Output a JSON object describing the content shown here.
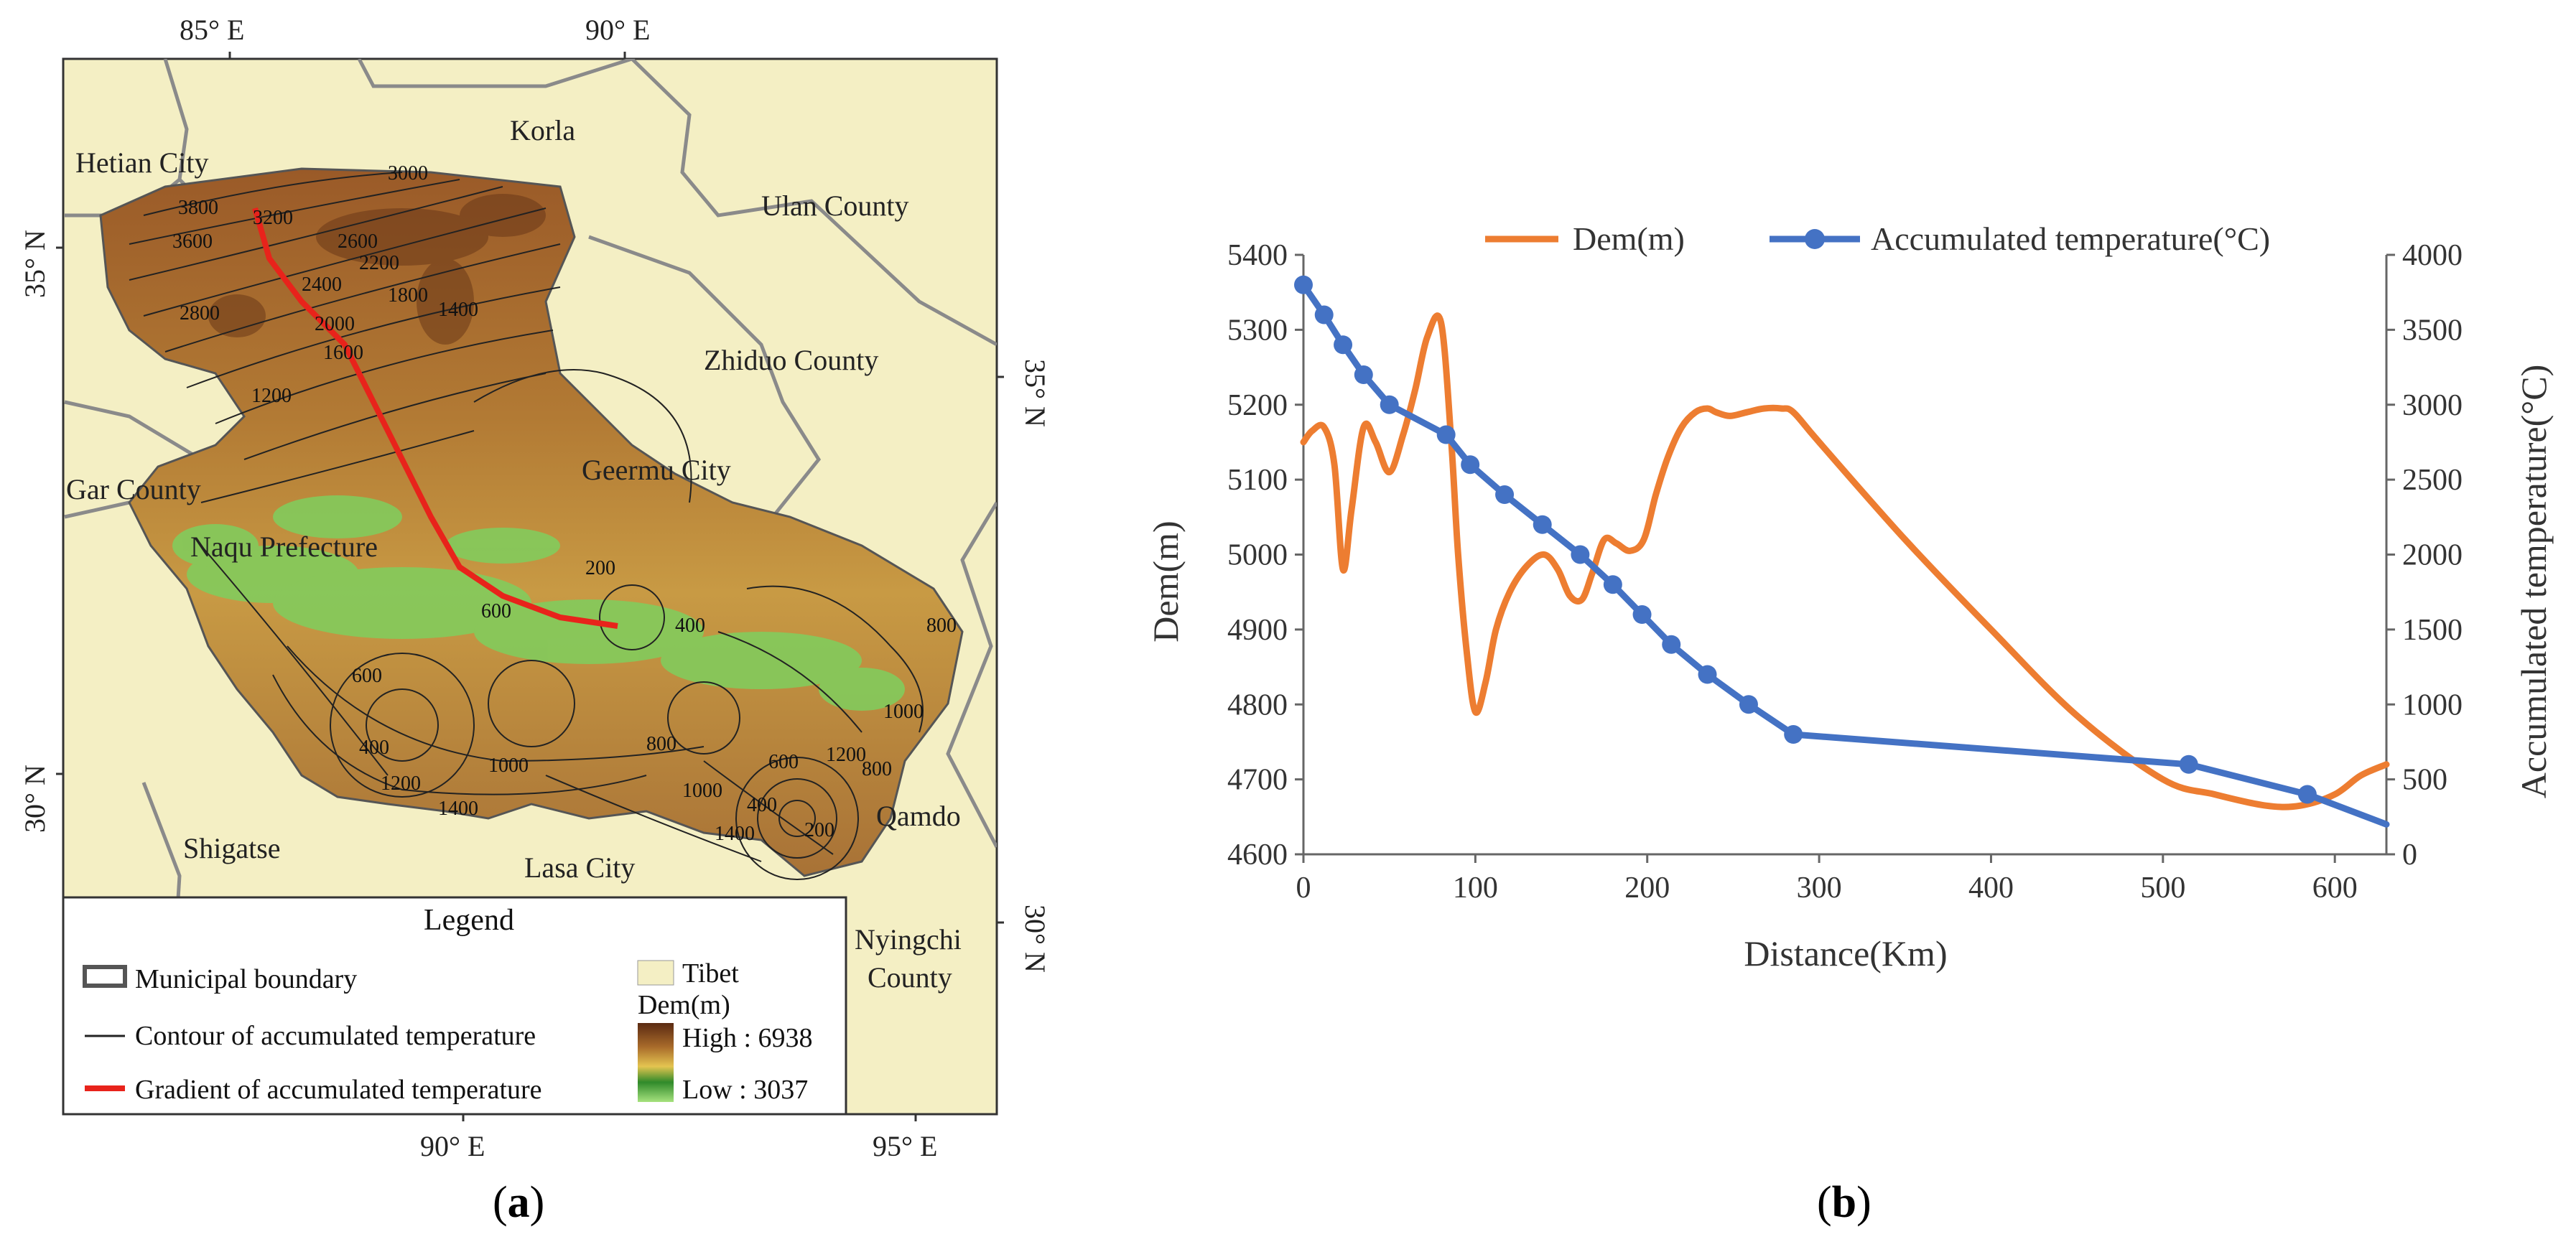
{
  "panel_a": {
    "caption": {
      "open": "(",
      "letter": "a",
      "close": ")"
    },
    "axes": {
      "top": [
        "85° E",
        "90° E"
      ],
      "bottom": [
        "90° E",
        "95° E"
      ],
      "left": [
        "35° N",
        "30° N"
      ],
      "right": [
        "35° N",
        "30° N"
      ]
    },
    "places": {
      "hetian": "Hetian City",
      "korla": "Korla",
      "ulan": "Ulan County",
      "zhiduo": "Zhiduo County",
      "geermu": "Geermu City",
      "gar": "Gar County",
      "naqu": "Naqu Prefecture",
      "shigatse": "Shigatse",
      "lasa": "Lasa City",
      "qamdo": "Qamdo",
      "nyingchi_1": "Nyingchi",
      "nyingchi_2": "County"
    },
    "contour_labels": [
      "3800",
      "3600",
      "3200",
      "3000",
      "2800",
      "2600",
      "2400",
      "2200",
      "2000",
      "1800",
      "1600",
      "1400",
      "1200",
      "800",
      "600",
      "400",
      "200",
      "400",
      "600",
      "800",
      "1000",
      "1200",
      "1400",
      "1000",
      "1200",
      "1400",
      "600",
      "400",
      "200",
      "800",
      "1000"
    ],
    "legend": {
      "title": "Legend",
      "municipal_boundary": "Municipal boundary",
      "contour": "Contour of accumulated temperature",
      "gradient": "Gradient of accumulated temperature",
      "tibet": "Tibet",
      "dem": "Dem(m)",
      "high": "High : 6938",
      "low": "Low : 3037"
    },
    "colors": {
      "background": "#f4efc4",
      "boundary": "#8a8a8a",
      "gradient_line": "#e8231b",
      "dem_high": "#5a2a12",
      "dem_mid": "#c8a040",
      "dem_low": "#8fd06a"
    }
  },
  "panel_b": {
    "caption": {
      "open": "(",
      "letter": "b",
      "close": ")"
    },
    "chart_data": {
      "type": "line",
      "xlabel": "Distance(Km)",
      "ylabel_left": "Dem(m)",
      "ylabel_right": "Accumulated temperature(°C)",
      "xlim": [
        0,
        630
      ],
      "ylim_left": [
        4600,
        5400
      ],
      "ylim_right": [
        0,
        4000
      ],
      "x_ticks": [
        0,
        100,
        200,
        300,
        400,
        500,
        600
      ],
      "y_left_ticks": [
        4600,
        4700,
        4800,
        4900,
        5000,
        5100,
        5200,
        5300,
        5400
      ],
      "y_right_ticks": [
        0,
        500,
        1000,
        1500,
        2000,
        2500,
        3000,
        3500,
        4000
      ],
      "legend_position": "top",
      "series": [
        {
          "name": "Dem(m)",
          "axis": "left",
          "color": "#ed7d31",
          "markers": false,
          "x": [
            0,
            5,
            12,
            18,
            23,
            28,
            35,
            42,
            50,
            58,
            65,
            72,
            80,
            86,
            90,
            95,
            100,
            106,
            112,
            120,
            130,
            140,
            148,
            155,
            162,
            168,
            175,
            182,
            190,
            198,
            205,
            212,
            220,
            228,
            235,
            240,
            248,
            258,
            268,
            278,
            285,
            300,
            350,
            400,
            450,
            500,
            530,
            560,
            580,
            600,
            615,
            630
          ],
          "y": [
            5150,
            5165,
            5170,
            5120,
            4980,
            5060,
            5170,
            5150,
            5110,
            5160,
            5220,
            5290,
            5310,
            5150,
            5000,
            4870,
            4790,
            4830,
            4900,
            4950,
            4985,
            5000,
            4980,
            4945,
            4940,
            4975,
            5020,
            5015,
            5005,
            5020,
            5080,
            5130,
            5170,
            5190,
            5195,
            5190,
            5185,
            5190,
            5195,
            5195,
            5190,
            5150,
            5020,
            4900,
            4785,
            4700,
            4680,
            4665,
            4665,
            4680,
            4705,
            4720
          ]
        },
        {
          "name": "Accumulated temperature(°C)",
          "axis": "right",
          "color": "#4472c4",
          "markers": true,
          "x": [
            0,
            12,
            23,
            35,
            50,
            83,
            97,
            117,
            139,
            161,
            180,
            197,
            214,
            235,
            259,
            285,
            515,
            584,
            630
          ],
          "y": [
            3800,
            3600,
            3400,
            3200,
            3000,
            2800,
            2600,
            2400,
            2200,
            2000,
            1800,
            1600,
            1400,
            1200,
            1000,
            800,
            600,
            400,
            200
          ]
        }
      ]
    }
  }
}
